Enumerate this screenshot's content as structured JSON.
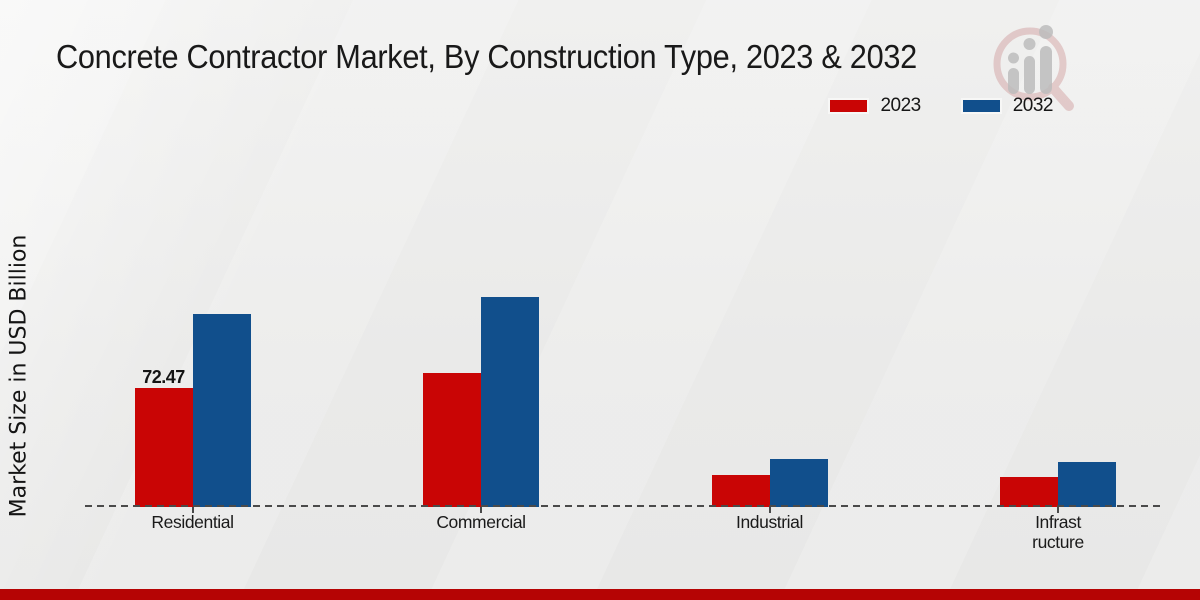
{
  "page": {
    "footer_bar_color": "#b50404",
    "background_color": "#ebebea",
    "watermark_icon": "magnifier-bar-chart-logo"
  },
  "chart_data": {
    "type": "bar",
    "title": "Concrete Contractor Market, By Construction Type, 2023 & 2032",
    "ylabel": "Market Size in USD Billion",
    "xlabel": "",
    "categories": [
      "Residential",
      "Commercial",
      "Industrial",
      "Infrastructure"
    ],
    "category_display_lines": [
      [
        "Residential"
      ],
      [
        "Commercial"
      ],
      [
        "Industrial"
      ],
      [
        "Infrast",
        "ructure"
      ]
    ],
    "series": [
      {
        "name": "2023",
        "color": "#c90505",
        "values": [
          72.47,
          81.6,
          19.5,
          18.3
        ]
      },
      {
        "name": "2032",
        "color": "#114f8c",
        "values": [
          117.5,
          127.9,
          29.2,
          27.4
        ]
      }
    ],
    "data_labels": [
      {
        "series_index": 0,
        "category_index": 0,
        "text": "72.47"
      }
    ],
    "ylim": [
      0,
      140
    ],
    "grid": false,
    "legend_position": "top-right",
    "baseline_style": "dashed"
  }
}
